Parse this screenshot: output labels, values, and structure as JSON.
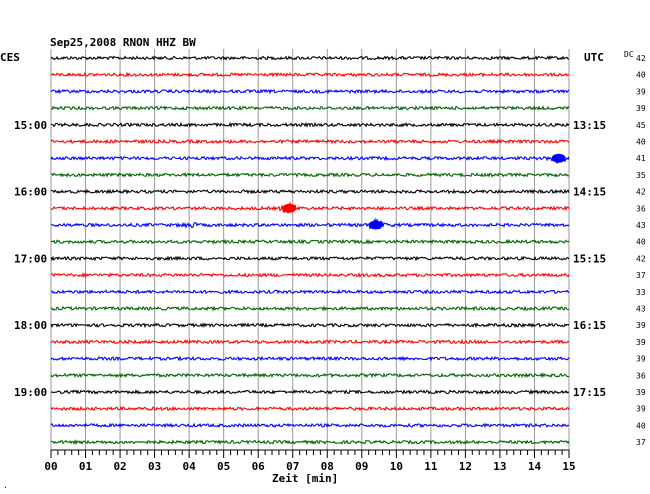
{
  "chart_data": {
    "type": "line",
    "title": "Sep25,2008   RNON HHZ BW",
    "left_axis_label": "CES",
    "right_axis_label": "UTC",
    "dc_label": "DC",
    "xlabel": "Zeit [min]",
    "xlim": [
      0,
      15
    ],
    "x_ticks": [
      "00",
      "01",
      "02",
      "03",
      "04",
      "05",
      "06",
      "07",
      "08",
      "09",
      "10",
      "11",
      "12",
      "13",
      "14",
      "15"
    ],
    "left_hour_labels": [
      {
        "trace": 4,
        "text": "15:00"
      },
      {
        "trace": 8,
        "text": "16:00"
      },
      {
        "trace": 12,
        "text": "17:00"
      },
      {
        "trace": 16,
        "text": "18:00"
      },
      {
        "trace": 20,
        "text": "19:00"
      }
    ],
    "right_time_labels": [
      {
        "trace": 4,
        "text": "13:15"
      },
      {
        "trace": 8,
        "text": "14:15"
      },
      {
        "trace": 12,
        "text": "15:15"
      },
      {
        "trace": 16,
        "text": "16:15"
      },
      {
        "trace": 20,
        "text": "17:15"
      }
    ],
    "trace_colors": [
      "#000000",
      "#ff0000",
      "#0000ff",
      "#006400"
    ],
    "dc_values": [
      "42",
      "40",
      "39",
      "39",
      "45",
      "40",
      "41",
      "35",
      "42",
      "36",
      "43",
      "40",
      "42",
      "37",
      "33",
      "43",
      "39",
      "39",
      "39",
      "36",
      "39",
      "39",
      "40",
      "37"
    ],
    "events": [
      {
        "trace": 6,
        "minute": 14.7,
        "amplitude": 5
      },
      {
        "trace": 9,
        "minute": 6.9,
        "amplitude": 5
      },
      {
        "trace": 10,
        "minute": 9.4,
        "amplitude": 5
      },
      {
        "trace": 10,
        "minute": 4.0,
        "amplitude": 2
      }
    ],
    "grid": true
  }
}
